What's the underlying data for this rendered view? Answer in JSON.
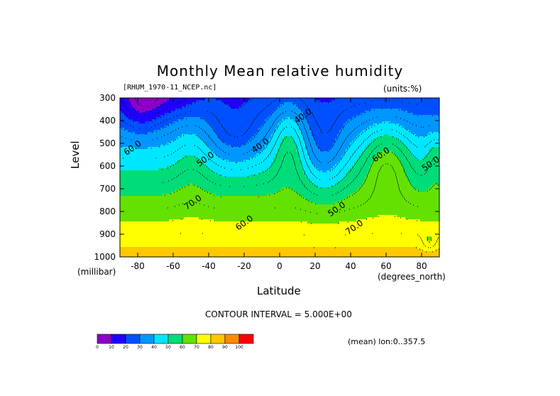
{
  "chart_data": {
    "type": "heatmap",
    "title": "Monthly Mean relative humidity",
    "source_label": "[RHUM_1970-11_NCEP.nc]",
    "units_label": "(units:%)",
    "xlabel": "Latitude",
    "x_unit": "(degrees_north)",
    "ylabel": "Level",
    "y_unit": "(millibar)",
    "contour_interval_label": "CONTOUR INTERVAL = 5.000E+00",
    "mean_label": "(mean) lon:0..357.5",
    "xlim": [
      -90,
      90
    ],
    "ylim": [
      1000,
      300
    ],
    "x_ticks": [
      -80,
      -60,
      -40,
      -20,
      0,
      20,
      40,
      60,
      80
    ],
    "y_ticks": [
      300,
      400,
      500,
      600,
      700,
      800,
      900,
      1000
    ],
    "contour_labels": [
      {
        "text": "40.0",
        "lat": 14,
        "level": 390
      },
      {
        "text": "40.0",
        "lat": -10,
        "level": 520
      },
      {
        "text": "50.0",
        "lat": -41,
        "level": 580
      },
      {
        "text": "60.0",
        "lat": -82,
        "level": 530
      },
      {
        "text": "60.0",
        "lat": 58,
        "level": 560
      },
      {
        "text": "50.0",
        "lat": 86,
        "level": 600
      },
      {
        "text": "70.0",
        "lat": -48,
        "level": 770
      },
      {
        "text": "60.0",
        "lat": -19,
        "level": 860
      },
      {
        "text": "50.0",
        "lat": 33,
        "level": 800
      },
      {
        "text": "70.0",
        "lat": 43,
        "level": 880
      }
    ],
    "colorbar": {
      "ticks": [
        "0",
        "10",
        "20",
        "30",
        "40",
        "50",
        "60",
        "70",
        "80",
        "90",
        "100"
      ],
      "colors": [
        "#8c00c8",
        "#1f00ff",
        "#0050ff",
        "#0096ff",
        "#00e6ff",
        "#00dc78",
        "#64e100",
        "#ffff00",
        "#ffc800",
        "#ff8c00",
        "#ff0000"
      ]
    },
    "grid": false
  }
}
